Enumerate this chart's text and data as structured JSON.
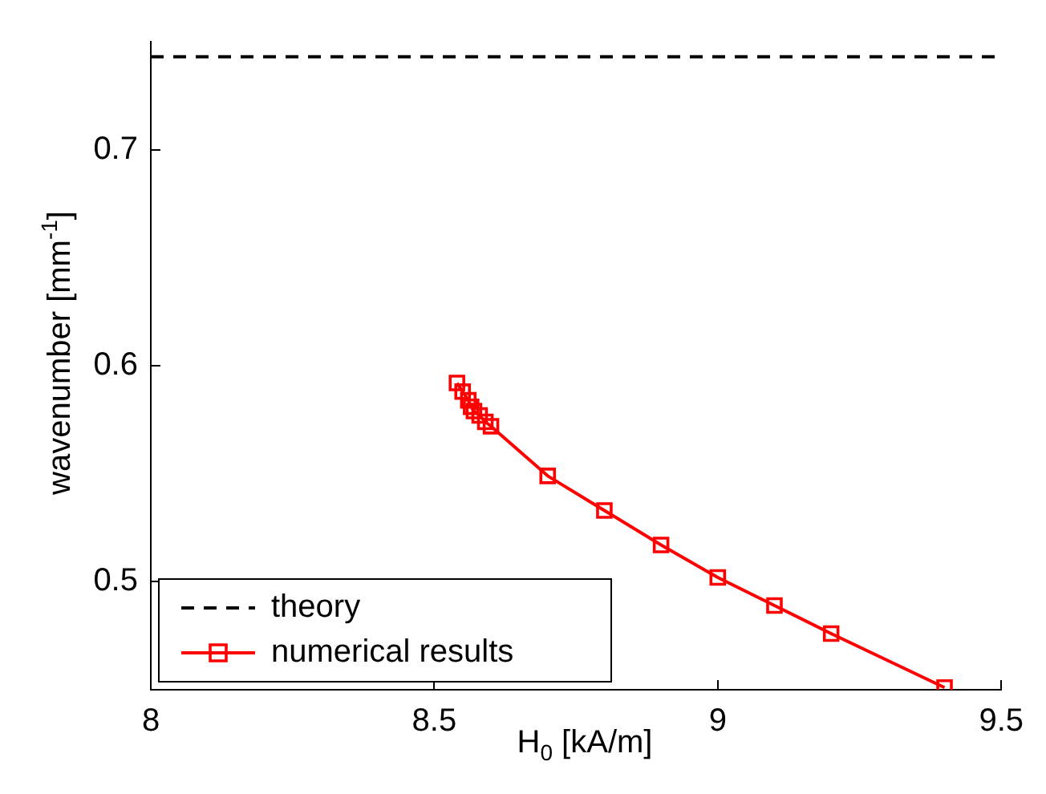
{
  "chart_data": {
    "type": "line",
    "xlabel": "H$_{0}$ [kA/m]",
    "ylabel": "wavenumber [mm$^{-1}$]",
    "xlim": [
      8,
      9.5
    ],
    "xticks": [
      8,
      8.5,
      9,
      9.5
    ],
    "ylim": [
      0.45,
      0.75
    ],
    "yticks": [
      0.5,
      0.6,
      0.7
    ],
    "grid": false,
    "legend": "bottom left",
    "marker": "square",
    "series": [
      {
        "name": "theory",
        "color": "#000000",
        "line_style": "dashed",
        "marker": "none",
        "x": [
          8,
          9.5
        ],
        "values": [
          0.743,
          0.743
        ]
      },
      {
        "name": "numerical results",
        "color": "#ff0000",
        "line_style": "solid",
        "x": [
          8.54,
          8.55,
          8.56,
          8.565,
          8.57,
          8.58,
          8.59,
          8.6,
          8.7,
          8.8,
          8.9,
          9,
          9.1,
          9.2,
          9.4
        ],
        "values": [
          0.592,
          0.588,
          0.584,
          0.581,
          0.579,
          0.577,
          0.574,
          0.572,
          0.549,
          0.533,
          0.517,
          0.502,
          0.489,
          0.476,
          0.451
        ]
      }
    ]
  }
}
